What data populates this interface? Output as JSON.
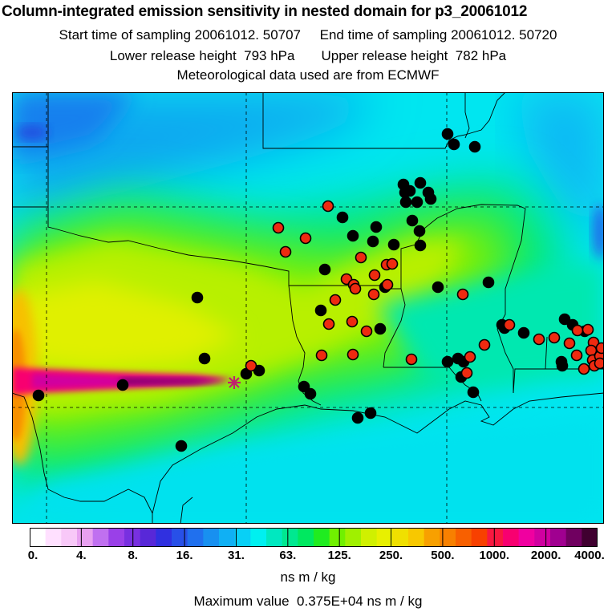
{
  "header": {
    "title": "Column-integrated emission sensitivity in nested domain for p3_20061012",
    "line1": "Start time of sampling 20061012. 50707     End time of sampling 20061012. 50720",
    "line2": "Lower release height  793 hPa       Upper release height  782 hPa",
    "line3": "Meteorological data used are from ECMWF"
  },
  "colorbar": {
    "colors": [
      "#ffffff",
      "#ffe0ff",
      "#f8c8f8",
      "#e8a0f0",
      "#c070f0",
      "#9a40e8",
      "#7830e0",
      "#5828d8",
      "#3030e0",
      "#2850e8",
      "#2070ee",
      "#1890f0",
      "#10b0f4",
      "#08d0f6",
      "#00f0f0",
      "#00e8c0",
      "#00e890",
      "#00e860",
      "#20ec20",
      "#70f000",
      "#a0f000",
      "#d0f000",
      "#e8f000",
      "#f0e000",
      "#f8c800",
      "#f8a000",
      "#f88000",
      "#f86000",
      "#f84000",
      "#f81840",
      "#f80070",
      "#f000a0",
      "#d000a0",
      "#a00090",
      "#700060",
      "#400030"
    ],
    "tick_labels": [
      "0.",
      "4.",
      "8.",
      "16.",
      "31.",
      "63.",
      "125.",
      "250.",
      "500.",
      "1000.",
      "2000.",
      "4000."
    ],
    "unit": "ns m / kg"
  },
  "max_value_text": "Maximum value  0.375E+04 ns m / kg",
  "release_point_marker": {
    "symbol": "*",
    "color": "#c0206e"
  },
  "stations_black": [
    [
      558,
      167
    ],
    [
      566,
      180
    ],
    [
      592,
      183
    ],
    [
      503,
      230
    ],
    [
      524,
      228
    ],
    [
      505,
      240
    ],
    [
      511,
      238
    ],
    [
      534,
      240
    ],
    [
      506,
      252
    ],
    [
      520,
      252
    ],
    [
      537,
      248
    ],
    [
      427,
      271
    ],
    [
      469,
      283
    ],
    [
      514,
      275
    ],
    [
      440,
      294
    ],
    [
      465,
      301
    ],
    [
      491,
      305
    ],
    [
      523,
      288
    ],
    [
      524,
      306
    ],
    [
      405,
      336
    ],
    [
      480,
      358
    ],
    [
      546,
      358
    ],
    [
      609,
      352
    ],
    [
      246,
      371
    ],
    [
      400,
      387
    ],
    [
      474,
      410
    ],
    [
      629,
      409
    ],
    [
      626,
      405
    ],
    [
      653,
      415
    ],
    [
      704,
      398
    ],
    [
      714,
      405
    ],
    [
      729,
      413
    ],
    [
      700,
      451
    ],
    [
      701,
      456
    ],
    [
      255,
      447
    ],
    [
      558,
      451
    ],
    [
      571,
      447
    ],
    [
      578,
      451
    ],
    [
      575,
      470
    ],
    [
      307,
      466
    ],
    [
      323,
      462
    ],
    [
      379,
      482
    ],
    [
      387,
      491
    ],
    [
      446,
      521
    ],
    [
      462,
      515
    ],
    [
      153,
      480
    ],
    [
      48,
      493
    ],
    [
      226,
      556
    ],
    [
      590,
      489
    ]
  ],
  "stations_red": [
    [
      409,
      257
    ],
    [
      347,
      284
    ],
    [
      381,
      297
    ],
    [
      356,
      314
    ],
    [
      450,
      321
    ],
    [
      432,
      348
    ],
    [
      441,
      355
    ],
    [
      443,
      360
    ],
    [
      467,
      343
    ],
    [
      482,
      330
    ],
    [
      489,
      329
    ],
    [
      483,
      355
    ],
    [
      466,
      367
    ],
    [
      418,
      374
    ],
    [
      410,
      404
    ],
    [
      439,
      401
    ],
    [
      457,
      413
    ],
    [
      577,
      367
    ],
    [
      635,
      405
    ],
    [
      672,
      423
    ],
    [
      691,
      421
    ],
    [
      720,
      412
    ],
    [
      733,
      411
    ],
    [
      740,
      427
    ],
    [
      737,
      437
    ],
    [
      739,
      449
    ],
    [
      719,
      443
    ],
    [
      710,
      428
    ],
    [
      741,
      456
    ],
    [
      728,
      460
    ],
    [
      748,
      444
    ],
    [
      750,
      434
    ],
    [
      748,
      453
    ],
    [
      604,
      430
    ],
    [
      586,
      445
    ],
    [
      582,
      465
    ],
    [
      513,
      448
    ],
    [
      440,
      442
    ],
    [
      401,
      443
    ],
    [
      313,
      456
    ]
  ]
}
